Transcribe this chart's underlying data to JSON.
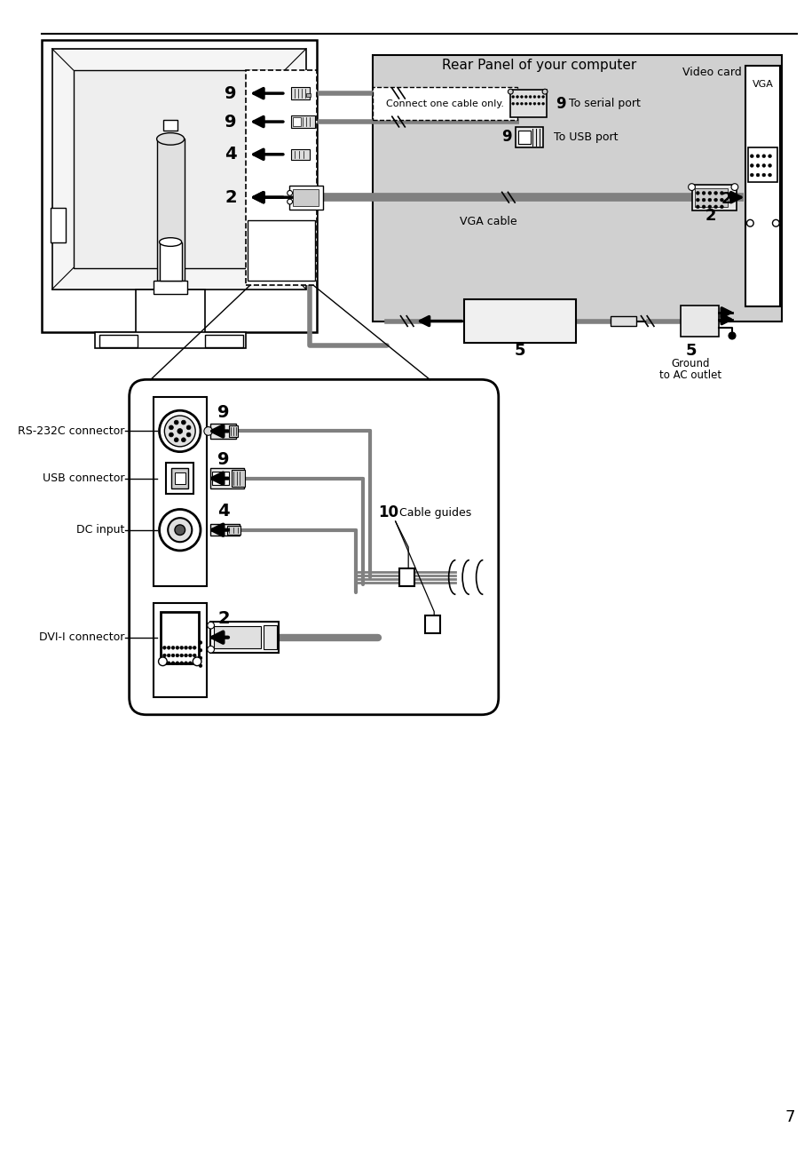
{
  "page_number": "7",
  "bg": "#ffffff",
  "gray_panel": "#d0d0d0",
  "light_gray": "#e8e8e8",
  "cable_gray": "#808080",
  "dark": "#000000",
  "title_rear_panel": "Rear Panel of your computer",
  "title_video_card": "Video card",
  "title_vga": "VGA",
  "label_connect_one": "Connect one cable only.",
  "label_vga_cable": "VGA cable",
  "label_to_serial": " To serial port",
  "label_to_usb": " To USB port",
  "label_ground_line1": "Ground",
  "label_ground_line2": "to AC outlet",
  "label_rs232": "RS-232C connector",
  "label_usb": "USB connector",
  "label_dc": "DC input",
  "label_dvi": "DVI-I connector",
  "label_cable_guides": "Cable guides"
}
